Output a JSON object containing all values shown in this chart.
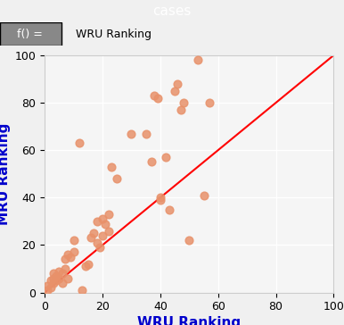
{
  "title": "cases",
  "title_bg_color": "#6bb8c0",
  "title_text_color": "white",
  "xlabel": "WRU Ranking",
  "ylabel": "MRU Ranking",
  "xlabel_color": "#0000cc",
  "ylabel_color": "#0000cc",
  "axis_label_fontsize": 11,
  "header_label": "f() =",
  "header_value": "WRU Ranking",
  "xlim": [
    0,
    100
  ],
  "ylim": [
    0,
    100
  ],
  "xticks": [
    0,
    20,
    40,
    60,
    80,
    100
  ],
  "yticks": [
    0,
    20,
    40,
    60,
    80,
    100
  ],
  "scatter_color": "#e8916a",
  "scatter_alpha": 0.85,
  "scatter_size": 40,
  "line_color": "red",
  "line_width": 1.5,
  "bg_color": "#f0f0f0",
  "plot_bg_color": "#f5f5f5",
  "grid_color": "white",
  "grid_linewidth": 1.0,
  "scatter_x": [
    1,
    1,
    2,
    2,
    3,
    3,
    3,
    4,
    4,
    5,
    5,
    6,
    6,
    7,
    7,
    8,
    8,
    9,
    10,
    10,
    12,
    13,
    14,
    15,
    16,
    17,
    18,
    18,
    19,
    20,
    20,
    21,
    22,
    22,
    23,
    25,
    30,
    35,
    37,
    38,
    39,
    40,
    40,
    42,
    43,
    45,
    46,
    47,
    48,
    50,
    53,
    55,
    57
  ],
  "scatter_y": [
    1,
    3,
    2,
    5,
    4,
    6,
    8,
    5,
    7,
    6,
    9,
    8,
    4,
    10,
    14,
    16,
    6,
    15,
    17,
    22,
    63,
    1,
    11,
    12,
    23,
    25,
    21,
    30,
    19,
    24,
    31,
    29,
    26,
    33,
    53,
    48,
    67,
    67,
    55,
    83,
    82,
    40,
    39,
    57,
    35,
    85,
    88,
    77,
    80,
    22,
    98,
    41,
    80
  ]
}
